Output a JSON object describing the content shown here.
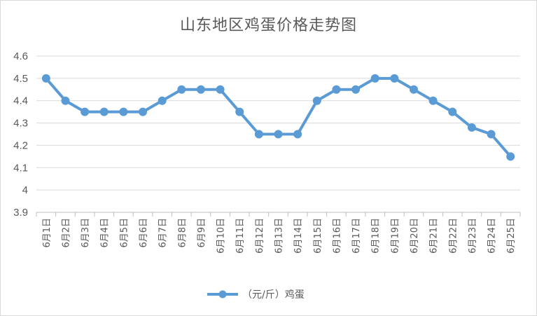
{
  "chart_data": {
    "type": "line",
    "title": "山东地区鸡蛋价格走势图",
    "categories": [
      "6月1日",
      "6月2日",
      "6月3日",
      "6月4日",
      "6月5日",
      "6月6日",
      "6月7日",
      "6月8日",
      "6月9日",
      "6月10日",
      "6月11日",
      "6月12日",
      "6月13日",
      "6月14日",
      "6月15日",
      "6月16日",
      "6月17日",
      "6月18日",
      "6月19日",
      "6月20日",
      "6月21日",
      "6月22日",
      "6月23日",
      "6月24日",
      "6月25日"
    ],
    "series": [
      {
        "name": "（元/斤）鸡蛋",
        "color": "#5b9bd5",
        "values": [
          4.5,
          4.4,
          4.35,
          4.35,
          4.35,
          4.35,
          4.4,
          4.45,
          4.45,
          4.45,
          4.35,
          4.25,
          4.25,
          4.25,
          4.4,
          4.45,
          4.45,
          4.5,
          4.5,
          4.45,
          4.4,
          4.35,
          4.28,
          4.25,
          4.15
        ]
      }
    ],
    "yticks": [
      "3.9",
      "4",
      "4.1",
      "4.2",
      "4.3",
      "4.4",
      "4.5",
      "4.6"
    ],
    "ylim": [
      3.9,
      4.6
    ],
    "grid": true,
    "legend_position": "bottom"
  }
}
